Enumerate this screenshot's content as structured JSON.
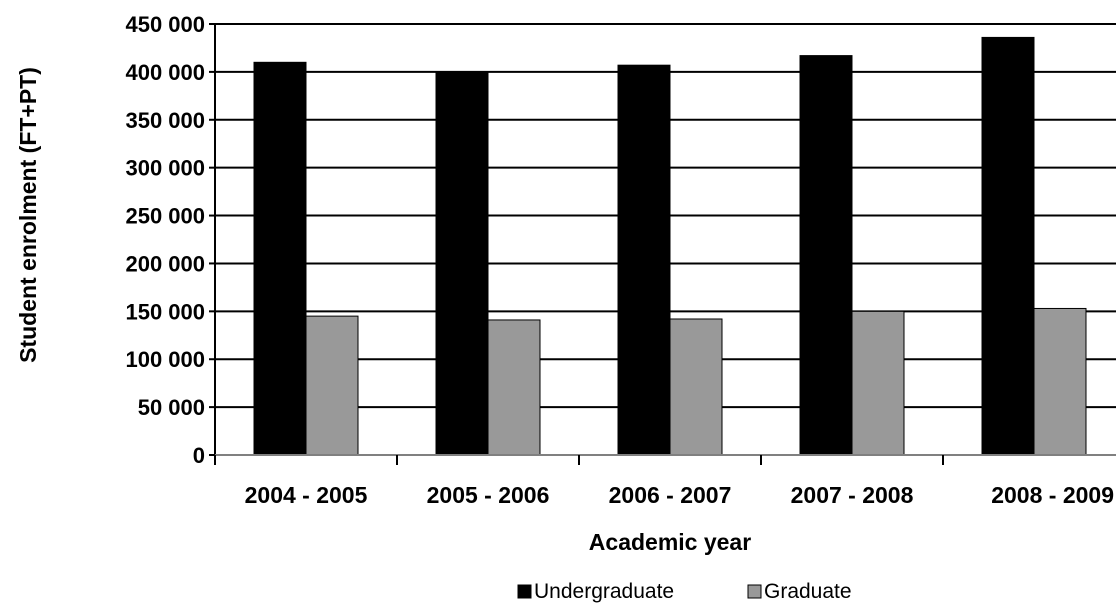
{
  "chart_data": {
    "type": "bar",
    "title": "",
    "xlabel": "Academic year",
    "ylabel": "Student enrolment (FT+PT)",
    "categories": [
      "2004 - 2005",
      "2005 - 2006",
      "2006 - 2007",
      "2007 - 2008",
      "2008 - 2009"
    ],
    "series": [
      {
        "name": "Undergraduate",
        "color": "#000000",
        "values": [
          410000,
          400000,
          407000,
          417000,
          436000
        ]
      },
      {
        "name": "Graduate",
        "color": "#999999",
        "values": [
          145000,
          141000,
          142000,
          150000,
          153000
        ]
      }
    ],
    "ylim": [
      0,
      450000
    ],
    "yticks": [
      0,
      50000,
      100000,
      150000,
      200000,
      250000,
      300000,
      350000,
      400000,
      450000
    ],
    "ytick_labels": [
      "0",
      "50 000",
      "100 000",
      "150 000",
      "200 000",
      "250 000",
      "300 000",
      "350 000",
      "400 000",
      "450 000"
    ],
    "grid": true,
    "legend_position": "bottom-center"
  }
}
